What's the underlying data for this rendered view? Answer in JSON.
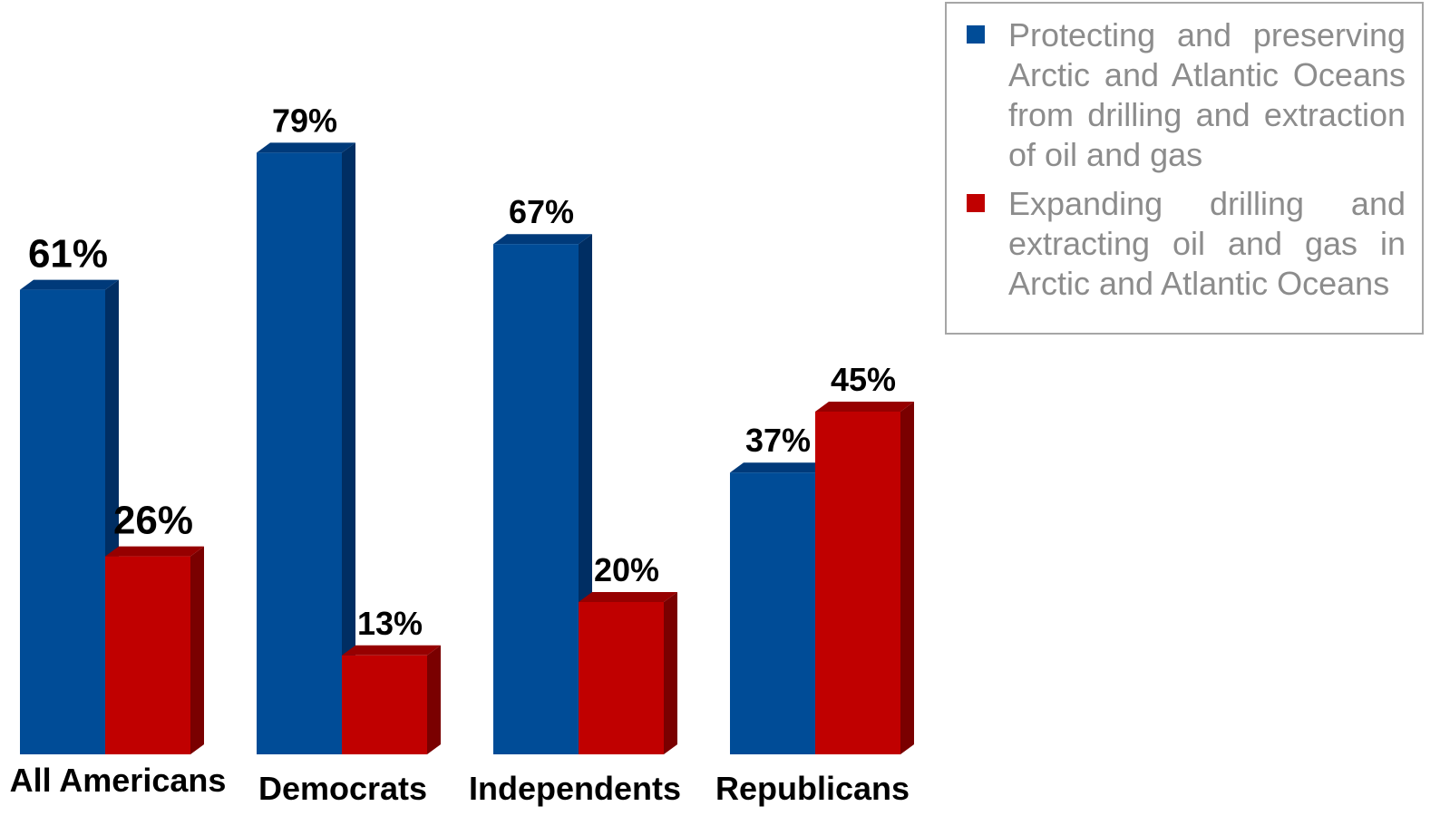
{
  "chart_data": {
    "type": "bar",
    "categories": [
      "All Americans",
      "Democrats",
      "Independents",
      "Republicans"
    ],
    "series": [
      {
        "name": "Protecting and preserving Arctic and Atlantic Oceans from drilling and extraction of oil and gas",
        "values": [
          61,
          79,
          67,
          37
        ],
        "labels": [
          "61%",
          "79%",
          "67%",
          "37%"
        ],
        "color": "#004C97",
        "side_color": "#002E63",
        "top_color": "#003A7A"
      },
      {
        "name": "Expanding drilling and extracting oil and gas in Arctic and Atlantic Oceans",
        "values": [
          26,
          13,
          20,
          45
        ],
        "labels": [
          "26%",
          "13%",
          "20%",
          "45%"
        ],
        "color": "#C00000",
        "side_color": "#7A0000",
        "top_color": "#960000"
      }
    ],
    "ylim": [
      0,
      100
    ],
    "grid": false,
    "legend_position": "top-right",
    "unit": "%"
  }
}
